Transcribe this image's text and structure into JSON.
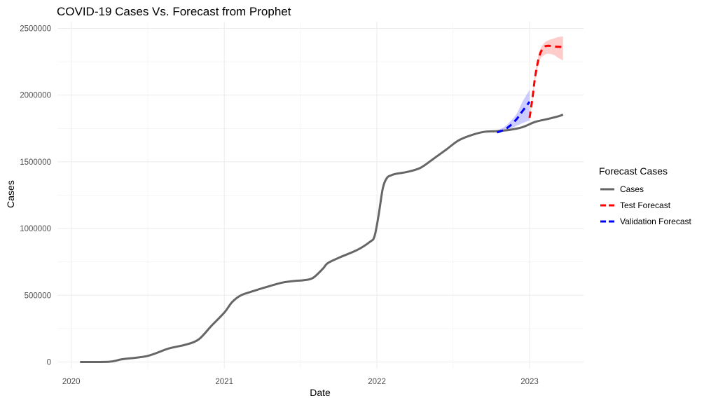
{
  "chart_data": {
    "type": "line",
    "title": "COVID-19 Cases Vs. Forecast from Prophet",
    "xlabel": "Date",
    "ylabel": "Cases",
    "xlim": [
      "2019-11-29",
      "2023-05-10"
    ],
    "ylim": [
      -50000,
      2550000
    ],
    "x_ticks": [
      "2020",
      "2021",
      "2022",
      "2023"
    ],
    "y_ticks": [
      0,
      500000,
      1000000,
      1500000,
      2000000,
      2500000
    ],
    "y_tick_labels": [
      "0",
      "500000",
      "1000000",
      "1500000",
      "2000000",
      "2500000"
    ],
    "grid": true,
    "legend_position": "right",
    "legend": {
      "title": "Forecast Cases",
      "entries": [
        {
          "label": "Cases",
          "color": "#666666",
          "dash": false
        },
        {
          "label": "Test Forecast",
          "color": "#ff0000",
          "dash": true
        },
        {
          "label": "Validation Forecast",
          "color": "#0000ff",
          "dash": true
        }
      ]
    },
    "series": [
      {
        "name": "Cases",
        "color": "#666666",
        "x": [
          "2020-01-22",
          "2020-04-01",
          "2020-05-01",
          "2020-07-01",
          "2020-08-20",
          "2020-10-01",
          "2020-11-01",
          "2020-12-01",
          "2021-01-01",
          "2021-01-20",
          "2021-02-10",
          "2021-03-10",
          "2021-04-10",
          "2021-05-20",
          "2021-06-20",
          "2021-07-10",
          "2021-08-01",
          "2021-08-25",
          "2021-09-05",
          "2021-10-01",
          "2021-11-15",
          "2021-12-15",
          "2021-12-26",
          "2022-01-05",
          "2022-01-15",
          "2022-01-25",
          "2022-02-05",
          "2022-02-15",
          "2022-03-15",
          "2022-04-15",
          "2022-05-15",
          "2022-06-15",
          "2022-07-15",
          "2022-08-15",
          "2022-09-15",
          "2022-10-15",
          "2022-11-15",
          "2022-12-15",
          "2023-01-15",
          "2023-02-15",
          "2023-03-15",
          "2023-03-22"
        ],
        "values": [
          0,
          2000,
          20000,
          45000,
          100000,
          130000,
          170000,
          270000,
          370000,
          450000,
          500000,
          530000,
          560000,
          595000,
          608000,
          613000,
          630000,
          700000,
          740000,
          780000,
          840000,
          900000,
          940000,
          1100000,
          1300000,
          1380000,
          1400000,
          1410000,
          1425000,
          1455000,
          1520000,
          1590000,
          1660000,
          1700000,
          1725000,
          1730000,
          1740000,
          1760000,
          1800000,
          1822000,
          1845000,
          1855000
        ]
      },
      {
        "name": "Validation Forecast",
        "color": "#0000ff",
        "x": [
          "2022-10-15",
          "2022-11-01",
          "2022-11-15",
          "2022-12-01",
          "2022-12-15",
          "2023-01-01"
        ],
        "values": [
          1720000,
          1740000,
          1770000,
          1820000,
          1880000,
          1950000
        ],
        "lower": [
          1715000,
          1730000,
          1745000,
          1770000,
          1790000,
          1810000
        ],
        "upper": [
          1735000,
          1760000,
          1800000,
          1860000,
          1950000,
          2040000
        ]
      },
      {
        "name": "Test Forecast",
        "color": "#ff0000",
        "x": [
          "2023-01-01",
          "2023-01-08",
          "2023-01-15",
          "2023-01-25",
          "2023-02-05",
          "2023-02-15",
          "2023-03-01",
          "2023-03-10",
          "2023-03-22"
        ],
        "values": [
          1830000,
          1980000,
          2150000,
          2300000,
          2360000,
          2370000,
          2365000,
          2362000,
          2362000
        ],
        "lower": [
          1810000,
          1960000,
          2120000,
          2260000,
          2300000,
          2310000,
          2300000,
          2280000,
          2260000
        ],
        "upper": [
          1850000,
          2000000,
          2180000,
          2330000,
          2390000,
          2410000,
          2425000,
          2435000,
          2440000
        ]
      }
    ]
  }
}
